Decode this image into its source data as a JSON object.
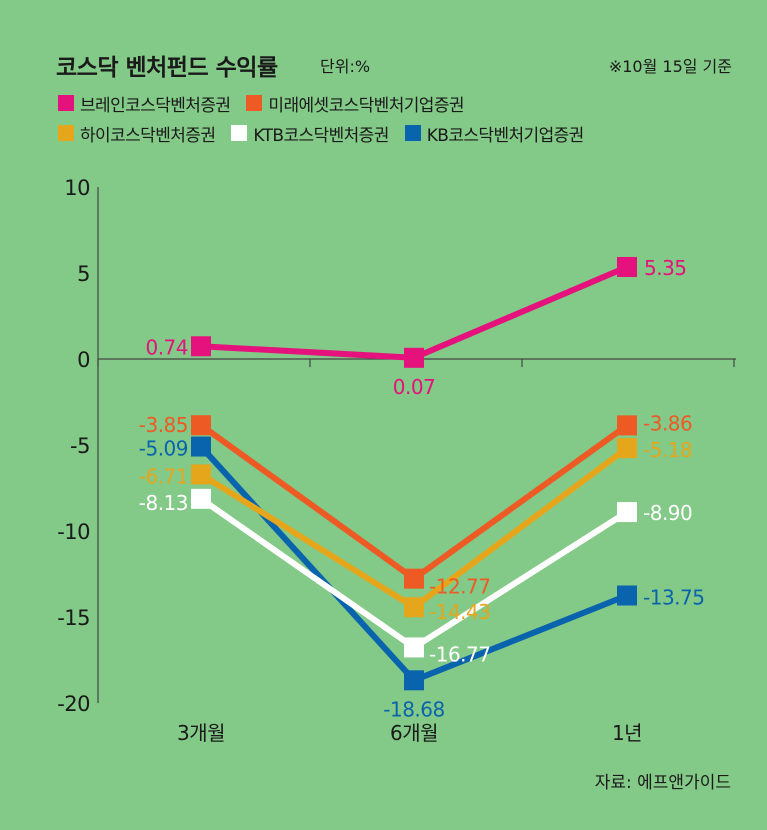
{
  "title": "코스닥 벤처펀드 수익률",
  "unit": "단위:%",
  "date_note": "※10월 15일 기준",
  "source": "자료: 에프앤가이드",
  "chart_data": {
    "type": "line",
    "categories": [
      "3개월",
      "6개월",
      "1년"
    ],
    "ylim": [
      -20,
      10
    ],
    "y_ticks": [
      10,
      5,
      0,
      -5,
      -10,
      -15,
      -20
    ],
    "y_tick_labels": [
      "10",
      "5",
      "0",
      "-5",
      "-10",
      "-15",
      "-20"
    ],
    "grid": false,
    "legend_position": "top",
    "series": [
      {
        "name": "브레인코스닥벤처증권",
        "color": "#e5127d",
        "values": [
          0.74,
          0.07,
          5.35
        ],
        "labels": [
          "0.74",
          "0.07",
          "5.35"
        ]
      },
      {
        "name": "미래에셋코스닥벤처기업증권",
        "color": "#ee5a24",
        "values": [
          -3.85,
          -12.77,
          -3.86
        ],
        "labels": [
          "-3.85",
          "-12.77",
          "-3.86"
        ]
      },
      {
        "name": "하이코스닥벤처증권",
        "color": "#e6a61c",
        "values": [
          -6.71,
          -14.43,
          -5.18
        ],
        "labels": [
          "-6.71",
          "-14.43",
          "-5.18"
        ]
      },
      {
        "name": "KTB코스닥벤처증권",
        "color": "#ffffff",
        "values": [
          -8.13,
          -16.77,
          -8.9
        ],
        "labels": [
          "-8.13",
          "-16.77",
          "-8.90"
        ]
      },
      {
        "name": "KB코스닥벤처기업증권",
        "color": "#0a63ad",
        "values": [
          -5.09,
          -18.68,
          -13.75
        ],
        "labels": [
          "-5.09",
          "-18.68",
          "-13.75"
        ]
      }
    ]
  }
}
